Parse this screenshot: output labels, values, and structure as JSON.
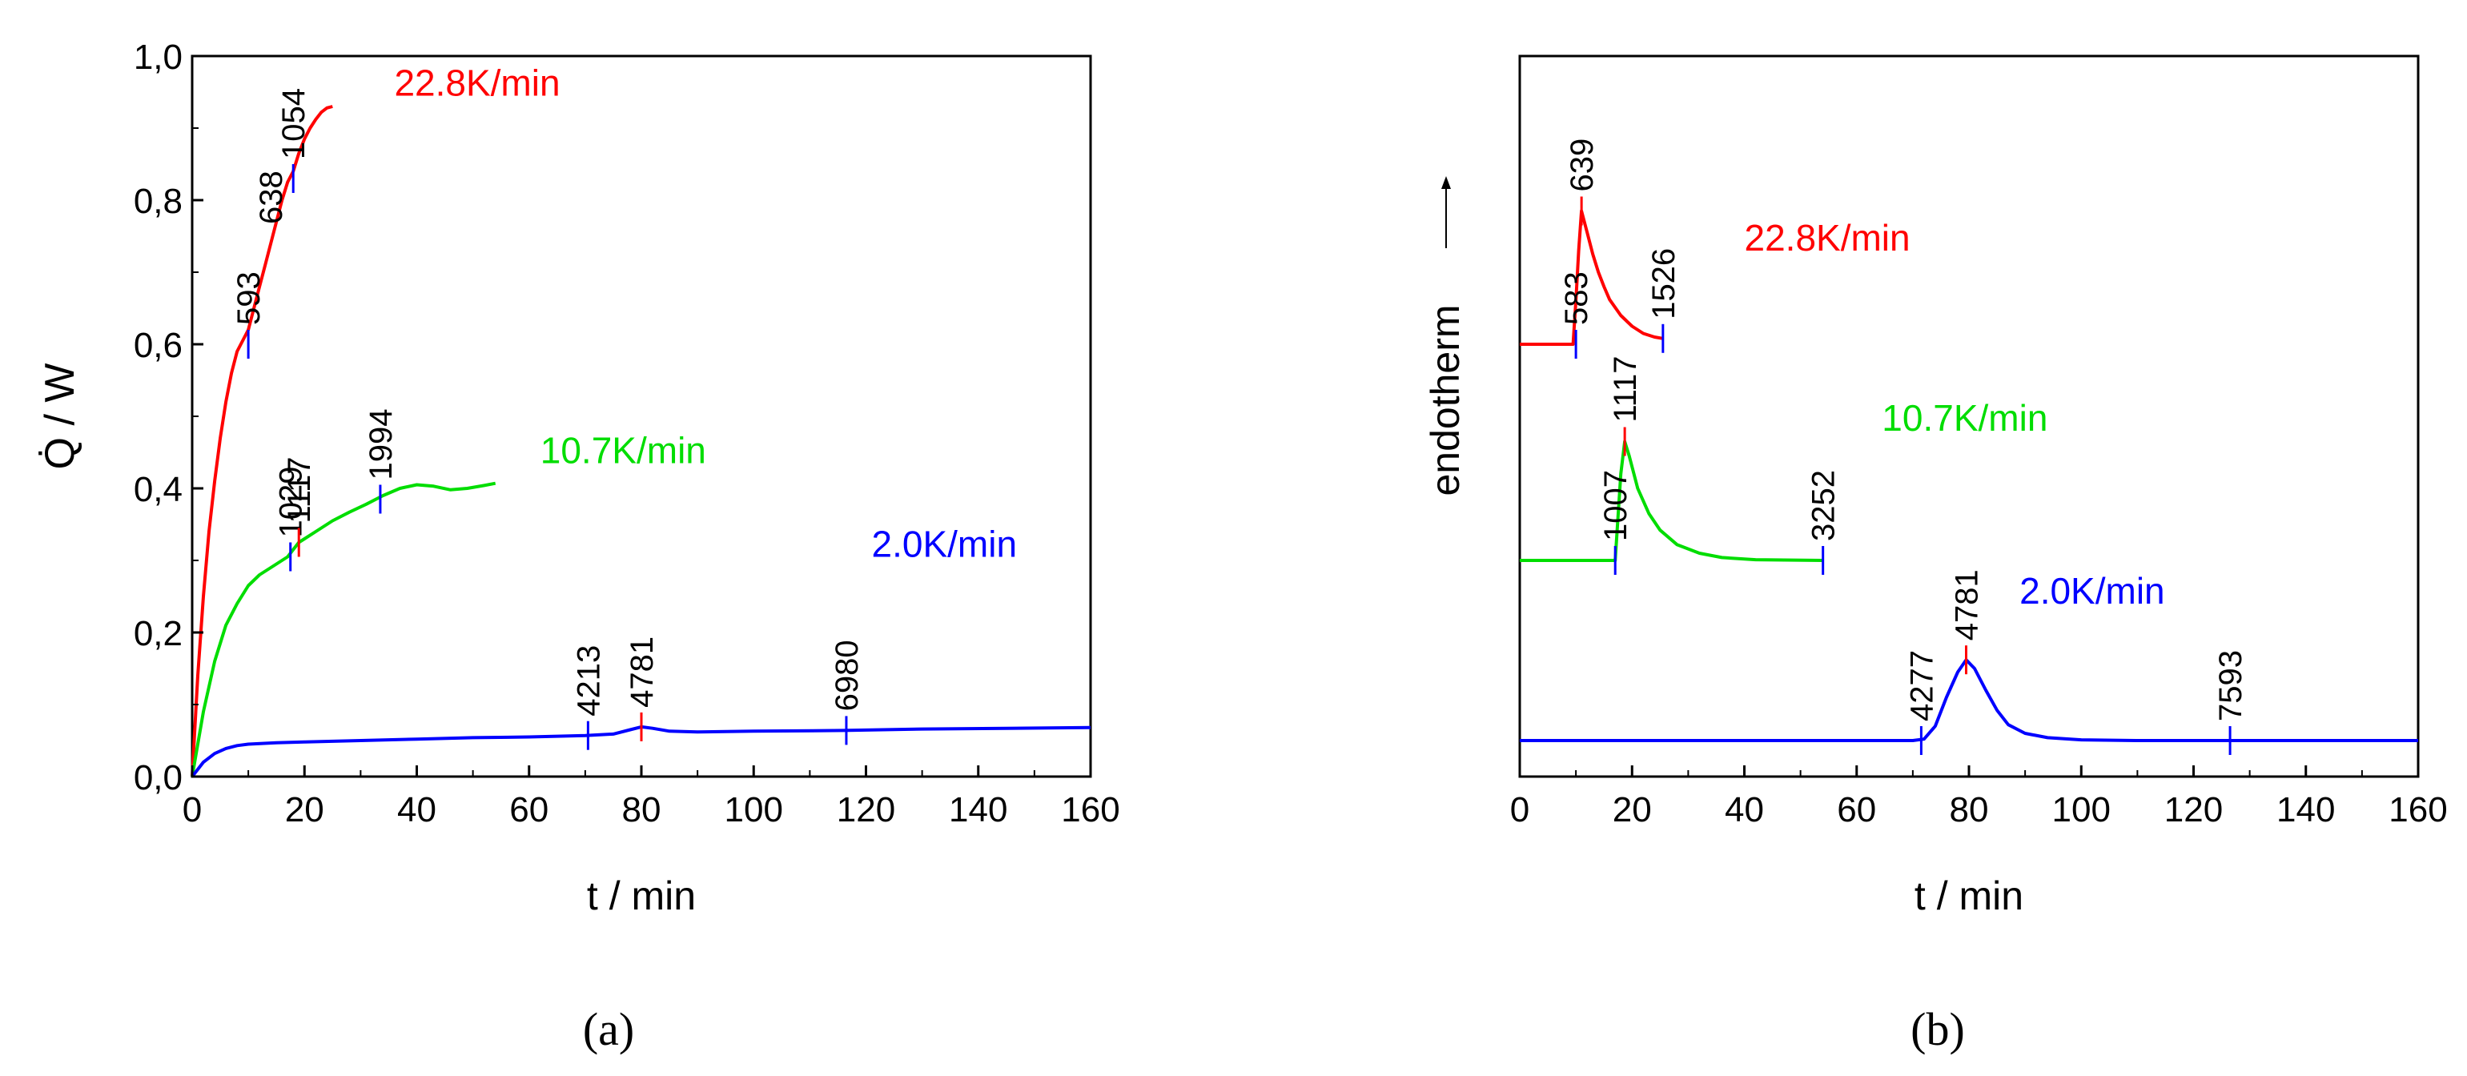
{
  "chart_data": [
    {
      "panel": "a",
      "type": "line",
      "caption": "(a)",
      "xlabel": "t / min",
      "ylabel": "Q̇ / W",
      "xlim": [
        0,
        160
      ],
      "ylim": [
        0,
        1.0
      ],
      "xticks": [
        0,
        20,
        40,
        60,
        80,
        100,
        120,
        140,
        160
      ],
      "xtick_labels": [
        "0",
        "20",
        "40",
        "60",
        "80",
        "100",
        "120",
        "140",
        "160"
      ],
      "yticks": [
        0,
        0.2,
        0.4,
        0.6,
        0.8,
        1.0
      ],
      "ytick_labels": [
        "0,0",
        "0,2",
        "0,4",
        "0,6",
        "0,8",
        "1,0"
      ],
      "series": [
        {
          "name": "22.8K/min",
          "color": "#ff0000",
          "points": [
            [
              0,
              0
            ],
            [
              1,
              0.14
            ],
            [
              2,
              0.25
            ],
            [
              3,
              0.34
            ],
            [
              4,
              0.41
            ],
            [
              5,
              0.47
            ],
            [
              6,
              0.52
            ],
            [
              7,
              0.56
            ],
            [
              8,
              0.59
            ],
            [
              9,
              0.605
            ],
            [
              10,
              0.62
            ],
            [
              11,
              0.65
            ],
            [
              12,
              0.68
            ],
            [
              13,
              0.71
            ],
            [
              14,
              0.74
            ],
            [
              15,
              0.77
            ],
            [
              16,
              0.8
            ],
            [
              17,
              0.825
            ],
            [
              18,
              0.84
            ],
            [
              19,
              0.865
            ],
            [
              20,
              0.885
            ],
            [
              21,
              0.9
            ],
            [
              22,
              0.912
            ],
            [
              23,
              0.922
            ],
            [
              24,
              0.928
            ],
            [
              25,
              0.93
            ]
          ],
          "markers": [
            {
              "x": 10,
              "y": 0.6,
              "label": "593",
              "color": "#0000ff"
            },
            {
              "x": 14,
              "y": 0.74,
              "label": "638",
              "color": "#0000ff",
              "no_tick": true
            },
            {
              "x": 18,
              "y": 0.83,
              "label": "1054",
              "color": "#0000ff"
            }
          ]
        },
        {
          "name": "10.7K/min",
          "color": "#00dd00",
          "points": [
            [
              0,
              0
            ],
            [
              2,
              0.09
            ],
            [
              4,
              0.16
            ],
            [
              6,
              0.21
            ],
            [
              8,
              0.24
            ],
            [
              10,
              0.265
            ],
            [
              12,
              0.28
            ],
            [
              14,
              0.29
            ],
            [
              16,
              0.3
            ],
            [
              17,
              0.305
            ],
            [
              18,
              0.315
            ],
            [
              19,
              0.325
            ],
            [
              20,
              0.33
            ],
            [
              22,
              0.34
            ],
            [
              25,
              0.355
            ],
            [
              28,
              0.367
            ],
            [
              31,
              0.378
            ],
            [
              34,
              0.39
            ],
            [
              37,
              0.4
            ],
            [
              40,
              0.405
            ],
            [
              43,
              0.403
            ],
            [
              46,
              0.398
            ],
            [
              49,
              0.4
            ],
            [
              52,
              0.404
            ],
            [
              54,
              0.407
            ]
          ],
          "markers": [
            {
              "x": 17.5,
              "y": 0.305,
              "label": "1029",
              "color": "#0000ff"
            },
            {
              "x": 19,
              "y": 0.325,
              "label": "1117",
              "color": "#ff0000"
            },
            {
              "x": 33.5,
              "y": 0.385,
              "label": "1994",
              "color": "#0000ff"
            }
          ]
        },
        {
          "name": "2.0K/min",
          "color": "#0000ff",
          "points": [
            [
              0,
              0
            ],
            [
              2,
              0.02
            ],
            [
              4,
              0.032
            ],
            [
              6,
              0.039
            ],
            [
              8,
              0.043
            ],
            [
              10,
              0.045
            ],
            [
              15,
              0.047
            ],
            [
              20,
              0.048
            ],
            [
              30,
              0.05
            ],
            [
              40,
              0.052
            ],
            [
              50,
              0.054
            ],
            [
              60,
              0.055
            ],
            [
              70,
              0.057
            ],
            [
              75,
              0.059
            ],
            [
              78,
              0.065
            ],
            [
              80,
              0.069
            ],
            [
              82,
              0.067
            ],
            [
              85,
              0.063
            ],
            [
              90,
              0.062
            ],
            [
              100,
              0.063
            ],
            [
              116,
              0.064
            ],
            [
              130,
              0.066
            ],
            [
              145,
              0.067
            ],
            [
              160,
              0.068
            ]
          ],
          "markers": [
            {
              "x": 70.5,
              "y": 0.057,
              "label": "4213",
              "color": "#0000ff"
            },
            {
              "x": 80,
              "y": 0.069,
              "label": "4781",
              "color": "#ff0000"
            },
            {
              "x": 116.5,
              "y": 0.064,
              "label": "6980",
              "color": "#0000ff"
            }
          ]
        }
      ],
      "legend_labels": [
        {
          "text": "22.8K/min",
          "color": "#ff0000",
          "x": 36,
          "y": 0.945
        },
        {
          "text": "10.7K/min",
          "color": "#00dd00",
          "x": 62,
          "y": 0.435
        },
        {
          "text": "2.0K/min",
          "color": "#0000ff",
          "x": 121,
          "y": 0.305
        }
      ]
    },
    {
      "panel": "b",
      "type": "line",
      "caption": "(b)",
      "xlabel": "t / min",
      "ylabel": "endotherm",
      "ylabel_arrow": "up",
      "xlim": [
        0,
        160
      ],
      "ylim": [
        0,
        10
      ],
      "yticks_hidden": true,
      "xticks": [
        0,
        20,
        40,
        60,
        80,
        100,
        120,
        140,
        160
      ],
      "xtick_labels": [
        "0",
        "20",
        "40",
        "60",
        "80",
        "100",
        "120",
        "140",
        "160"
      ],
      "series": [
        {
          "name": "22.8K/min",
          "color": "#ff0000",
          "points": [
            [
              0,
              6.0
            ],
            [
              9.5,
              6.0
            ],
            [
              10,
              6.6
            ],
            [
              10.5,
              7.3
            ],
            [
              11,
              7.85
            ],
            [
              12,
              7.55
            ],
            [
              13,
              7.25
            ],
            [
              14,
              7.0
            ],
            [
              15,
              6.8
            ],
            [
              16,
              6.62
            ],
            [
              18,
              6.4
            ],
            [
              20,
              6.25
            ],
            [
              22,
              6.15
            ],
            [
              24,
              6.1
            ],
            [
              25.5,
              6.08
            ]
          ],
          "markers": [
            {
              "x": 10,
              "y": 6.0,
              "label": "583",
              "color": "#0000ff"
            },
            {
              "x": 11,
              "y": 7.85,
              "label": "639",
              "color": "#ff0000"
            },
            {
              "x": 25.5,
              "y": 6.08,
              "label": "1526",
              "color": "#0000ff"
            }
          ]
        },
        {
          "name": "10.7K/min",
          "color": "#00dd00",
          "points": [
            [
              0,
              3.0
            ],
            [
              17,
              3.0
            ],
            [
              17.5,
              3.6
            ],
            [
              18,
              4.2
            ],
            [
              18.7,
              4.65
            ],
            [
              19.5,
              4.45
            ],
            [
              21,
              4.0
            ],
            [
              23,
              3.65
            ],
            [
              25,
              3.42
            ],
            [
              28,
              3.22
            ],
            [
              32,
              3.1
            ],
            [
              36,
              3.04
            ],
            [
              42,
              3.01
            ],
            [
              54,
              3.0
            ]
          ],
          "markers": [
            {
              "x": 17,
              "y": 3.0,
              "label": "1007",
              "color": "#0000ff"
            },
            {
              "x": 18.7,
              "y": 4.65,
              "label": "1117",
              "color": "#ff0000"
            },
            {
              "x": 54,
              "y": 3.0,
              "label": "3252",
              "color": "#0000ff"
            }
          ]
        },
        {
          "name": "2.0K/min",
          "color": "#0000ff",
          "points": [
            [
              0,
              0.5
            ],
            [
              70,
              0.5
            ],
            [
              72,
              0.52
            ],
            [
              74,
              0.7
            ],
            [
              76,
              1.1
            ],
            [
              78,
              1.45
            ],
            [
              79.5,
              1.62
            ],
            [
              81,
              1.5
            ],
            [
              83,
              1.2
            ],
            [
              85,
              0.92
            ],
            [
              87,
              0.72
            ],
            [
              90,
              0.6
            ],
            [
              94,
              0.54
            ],
            [
              100,
              0.51
            ],
            [
              110,
              0.5
            ],
            [
              127,
              0.5
            ],
            [
              160,
              0.5
            ]
          ],
          "markers": [
            {
              "x": 71.5,
              "y": 0.5,
              "label": "4277",
              "color": "#0000ff"
            },
            {
              "x": 79.5,
              "y": 1.62,
              "label": "4781",
              "color": "#ff0000"
            },
            {
              "x": 126.5,
              "y": 0.5,
              "label": "7593",
              "color": "#0000ff"
            }
          ]
        }
      ],
      "legend_labels": [
        {
          "text": "22.8K/min",
          "color": "#ff0000",
          "x": 40,
          "y": 7.3
        },
        {
          "text": "10.7K/min",
          "color": "#00dd00",
          "x": 64.5,
          "y": 4.8
        },
        {
          "text": "2.0K/min",
          "color": "#0000ff",
          "x": 89,
          "y": 2.4
        }
      ]
    }
  ]
}
